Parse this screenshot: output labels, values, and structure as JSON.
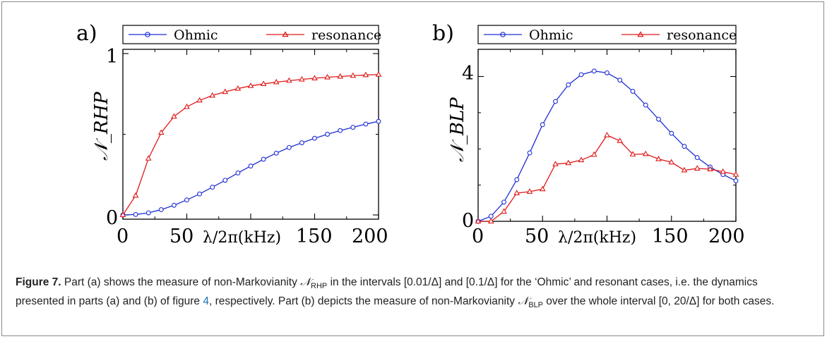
{
  "chart_data": [
    {
      "type": "line",
      "panel_label": "a)",
      "ylabel": "𝒩_RHP",
      "xlabel": "λ/2π(kHz)",
      "xlim": [
        0,
        200
      ],
      "ylim": [
        0,
        1
      ],
      "x_ticks": [
        "0",
        "50",
        "150",
        "200"
      ],
      "y_ticks": [
        "0",
        "1"
      ],
      "legend": "top",
      "series": [
        {
          "name": "Ohmic",
          "color": "#1f2fd6",
          "marker": "circle",
          "x": [
            0,
            10,
            20,
            30,
            40,
            50,
            60,
            70,
            80,
            90,
            100,
            110,
            120,
            130,
            140,
            150,
            160,
            170,
            180,
            190,
            200
          ],
          "y": [
            0.0,
            0.003,
            0.013,
            0.033,
            0.06,
            0.093,
            0.13,
            0.172,
            0.215,
            0.26,
            0.303,
            0.345,
            0.383,
            0.418,
            0.447,
            0.475,
            0.5,
            0.523,
            0.543,
            0.563,
            0.58
          ]
        },
        {
          "name": "resonance",
          "color": "#e01818",
          "marker": "triangle",
          "x": [
            0,
            10,
            20,
            30,
            40,
            50,
            60,
            70,
            80,
            90,
            100,
            110,
            120,
            130,
            140,
            150,
            160,
            170,
            180,
            190,
            200
          ],
          "y": [
            0.0,
            0.12,
            0.35,
            0.51,
            0.61,
            0.67,
            0.71,
            0.74,
            0.763,
            0.783,
            0.8,
            0.812,
            0.823,
            0.832,
            0.84,
            0.847,
            0.853,
            0.858,
            0.863,
            0.867,
            0.87
          ]
        }
      ]
    },
    {
      "type": "line",
      "panel_label": "b)",
      "ylabel": "𝒩_BLP",
      "xlabel": "λ/2π(kHz)",
      "xlim": [
        0,
        200
      ],
      "ylim": [
        0,
        4.75
      ],
      "x_ticks": [
        "0",
        "50",
        "150",
        "200"
      ],
      "y_ticks": [
        "0",
        "4"
      ],
      "legend": "top",
      "series": [
        {
          "name": "Ohmic",
          "color": "#1f2fd6",
          "marker": "circle",
          "x": [
            0,
            10,
            20,
            30,
            40,
            50,
            60,
            70,
            80,
            90,
            100,
            110,
            120,
            130,
            140,
            150,
            160,
            170,
            180,
            190,
            200
          ],
          "y": [
            0.0,
            0.14,
            0.53,
            1.15,
            1.89,
            2.67,
            3.31,
            3.77,
            4.05,
            4.15,
            4.1,
            3.9,
            3.59,
            3.21,
            2.82,
            2.43,
            2.07,
            1.76,
            1.5,
            1.29,
            1.12
          ]
        },
        {
          "name": "resonance",
          "color": "#e01818",
          "marker": "triangle",
          "x": [
            0,
            10,
            20,
            30,
            40,
            50,
            60,
            70,
            80,
            90,
            100,
            110,
            120,
            130,
            140,
            150,
            160,
            170,
            180,
            190,
            200
          ],
          "y": [
            0.0,
            0.0,
            0.27,
            0.78,
            0.82,
            0.89,
            1.58,
            1.61,
            1.69,
            1.84,
            2.38,
            2.22,
            1.85,
            1.86,
            1.72,
            1.63,
            1.41,
            1.46,
            1.44,
            1.37,
            1.29
          ]
        }
      ]
    }
  ],
  "caption": {
    "label": "Figure 7.",
    "p1": " Part (a) shows the measure of non-Markovianity ",
    "m1": "𝒩",
    "m1sub": "RHP",
    "p2": " in the intervals [0.01/Δ] and [0.1/Δ] for the ‘Ohmic’ and resonant cases, i.e. the dynamics presented in parts (a) and (b) of figure ",
    "ref": "4",
    "p3": ", respectively. Part (b) depicts the measure of non-Markovianity ",
    "m2": "𝒩",
    "m2sub": "BLP",
    "p4": " over the whole interval [0, 20/Δ] for both cases."
  }
}
